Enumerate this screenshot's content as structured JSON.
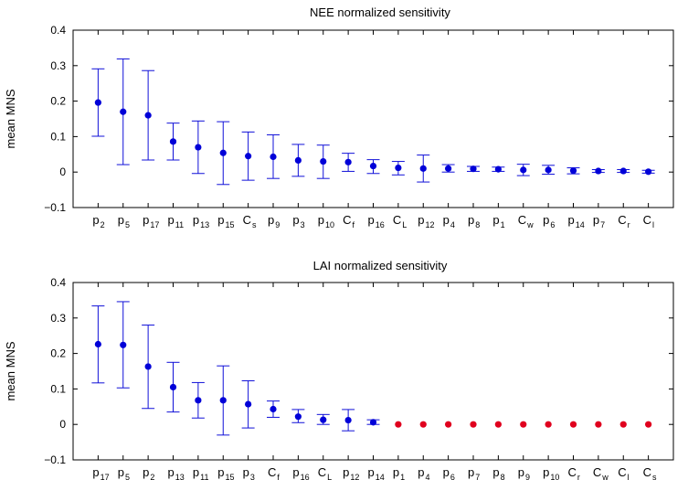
{
  "colors": {
    "highlight": "#0000d8",
    "zero_marker": "#e0001e"
  },
  "chart_data": [
    {
      "type": "scatter",
      "title": "NEE normalized sensitivity",
      "ylabel": "mean MNS",
      "ylim": [
        -0.1,
        0.4
      ],
      "yticks": [
        "−0.1",
        "0",
        "0.1",
        "0.2",
        "0.3",
        "0.4"
      ],
      "yticks_values": [
        -0.1,
        0,
        0.1,
        0.2,
        0.3,
        0.4
      ],
      "categories": [
        {
          "base": "p",
          "sub": "2"
        },
        {
          "base": "p",
          "sub": "5"
        },
        {
          "base": "p",
          "sub": "17"
        },
        {
          "base": "p",
          "sub": "11"
        },
        {
          "base": "p",
          "sub": "13"
        },
        {
          "base": "p",
          "sub": "15"
        },
        {
          "base": "C",
          "sub": "s"
        },
        {
          "base": "p",
          "sub": "9"
        },
        {
          "base": "p",
          "sub": "3"
        },
        {
          "base": "p",
          "sub": "10"
        },
        {
          "base": "C",
          "sub": "f"
        },
        {
          "base": "p",
          "sub": "16"
        },
        {
          "base": "C",
          "sub": "L"
        },
        {
          "base": "p",
          "sub": "12"
        },
        {
          "base": "p",
          "sub": "4"
        },
        {
          "base": "p",
          "sub": "8"
        },
        {
          "base": "p",
          "sub": "1"
        },
        {
          "base": "C",
          "sub": "w"
        },
        {
          "base": "p",
          "sub": "6"
        },
        {
          "base": "p",
          "sub": "14"
        },
        {
          "base": "p",
          "sub": "7"
        },
        {
          "base": "C",
          "sub": "r"
        },
        {
          "base": "C",
          "sub": "l"
        }
      ],
      "values": [
        0.196,
        0.17,
        0.16,
        0.086,
        0.07,
        0.054,
        0.045,
        0.043,
        0.033,
        0.03,
        0.028,
        0.017,
        0.012,
        0.01,
        0.01,
        0.009,
        0.008,
        0.006,
        0.006,
        0.004,
        0.003,
        0.003,
        0.001
      ],
      "error_low": [
        0.101,
        0.021,
        0.034,
        0.034,
        -0.004,
        -0.035,
        -0.023,
        -0.018,
        -0.012,
        -0.018,
        0.002,
        -0.004,
        -0.008,
        -0.028,
        0.0,
        0.002,
        0.002,
        -0.01,
        -0.006,
        -0.005,
        -0.001,
        -0.001,
        -0.003
      ],
      "error_high": [
        0.291,
        0.319,
        0.286,
        0.138,
        0.144,
        0.142,
        0.113,
        0.105,
        0.078,
        0.076,
        0.053,
        0.035,
        0.03,
        0.048,
        0.021,
        0.016,
        0.014,
        0.022,
        0.019,
        0.012,
        0.007,
        0.007,
        0.005
      ],
      "marker_colors": [
        "blue",
        "blue",
        "blue",
        "blue",
        "blue",
        "blue",
        "blue",
        "blue",
        "blue",
        "blue",
        "blue",
        "blue",
        "blue",
        "blue",
        "blue",
        "blue",
        "blue",
        "blue",
        "blue",
        "blue",
        "blue",
        "blue",
        "blue"
      ]
    },
    {
      "type": "scatter",
      "title": "LAI normalized sensitivity",
      "ylabel": "mean MNS",
      "ylim": [
        -0.1,
        0.4
      ],
      "yticks": [
        "−0.1",
        "0",
        "0.1",
        "0.2",
        "0.3",
        "0.4"
      ],
      "yticks_values": [
        -0.1,
        0,
        0.1,
        0.2,
        0.3,
        0.4
      ],
      "categories": [
        {
          "base": "p",
          "sub": "17"
        },
        {
          "base": "p",
          "sub": "5"
        },
        {
          "base": "p",
          "sub": "2"
        },
        {
          "base": "p",
          "sub": "13"
        },
        {
          "base": "p",
          "sub": "11"
        },
        {
          "base": "p",
          "sub": "15"
        },
        {
          "base": "p",
          "sub": "3"
        },
        {
          "base": "C",
          "sub": "f"
        },
        {
          "base": "p",
          "sub": "16"
        },
        {
          "base": "C",
          "sub": "L"
        },
        {
          "base": "p",
          "sub": "12"
        },
        {
          "base": "p",
          "sub": "14"
        },
        {
          "base": "p",
          "sub": "1"
        },
        {
          "base": "p",
          "sub": "4"
        },
        {
          "base": "p",
          "sub": "6"
        },
        {
          "base": "p",
          "sub": "7"
        },
        {
          "base": "p",
          "sub": "8"
        },
        {
          "base": "p",
          "sub": "9"
        },
        {
          "base": "p",
          "sub": "10"
        },
        {
          "base": "C",
          "sub": "r"
        },
        {
          "base": "C",
          "sub": "w"
        },
        {
          "base": "C",
          "sub": "l"
        },
        {
          "base": "C",
          "sub": "s"
        }
      ],
      "values": [
        0.226,
        0.224,
        0.163,
        0.105,
        0.068,
        0.068,
        0.057,
        0.043,
        0.022,
        0.013,
        0.012,
        0.006,
        0,
        0,
        0,
        0,
        0,
        0,
        0,
        0,
        0,
        0,
        0
      ],
      "error_low": [
        0.117,
        0.103,
        0.045,
        0.035,
        0.018,
        -0.03,
        -0.01,
        0.02,
        0.005,
        0.0,
        -0.018,
        0.0,
        null,
        null,
        null,
        null,
        null,
        null,
        null,
        null,
        null,
        null,
        null
      ],
      "error_high": [
        0.334,
        0.346,
        0.28,
        0.175,
        0.118,
        0.165,
        0.123,
        0.066,
        0.042,
        0.028,
        0.042,
        0.013,
        null,
        null,
        null,
        null,
        null,
        null,
        null,
        null,
        null,
        null,
        null
      ],
      "marker_colors": [
        "blue",
        "blue",
        "blue",
        "blue",
        "blue",
        "blue",
        "blue",
        "blue",
        "blue",
        "blue",
        "blue",
        "blue",
        "red",
        "red",
        "red",
        "red",
        "red",
        "red",
        "red",
        "red",
        "red",
        "red",
        "red"
      ]
    }
  ]
}
